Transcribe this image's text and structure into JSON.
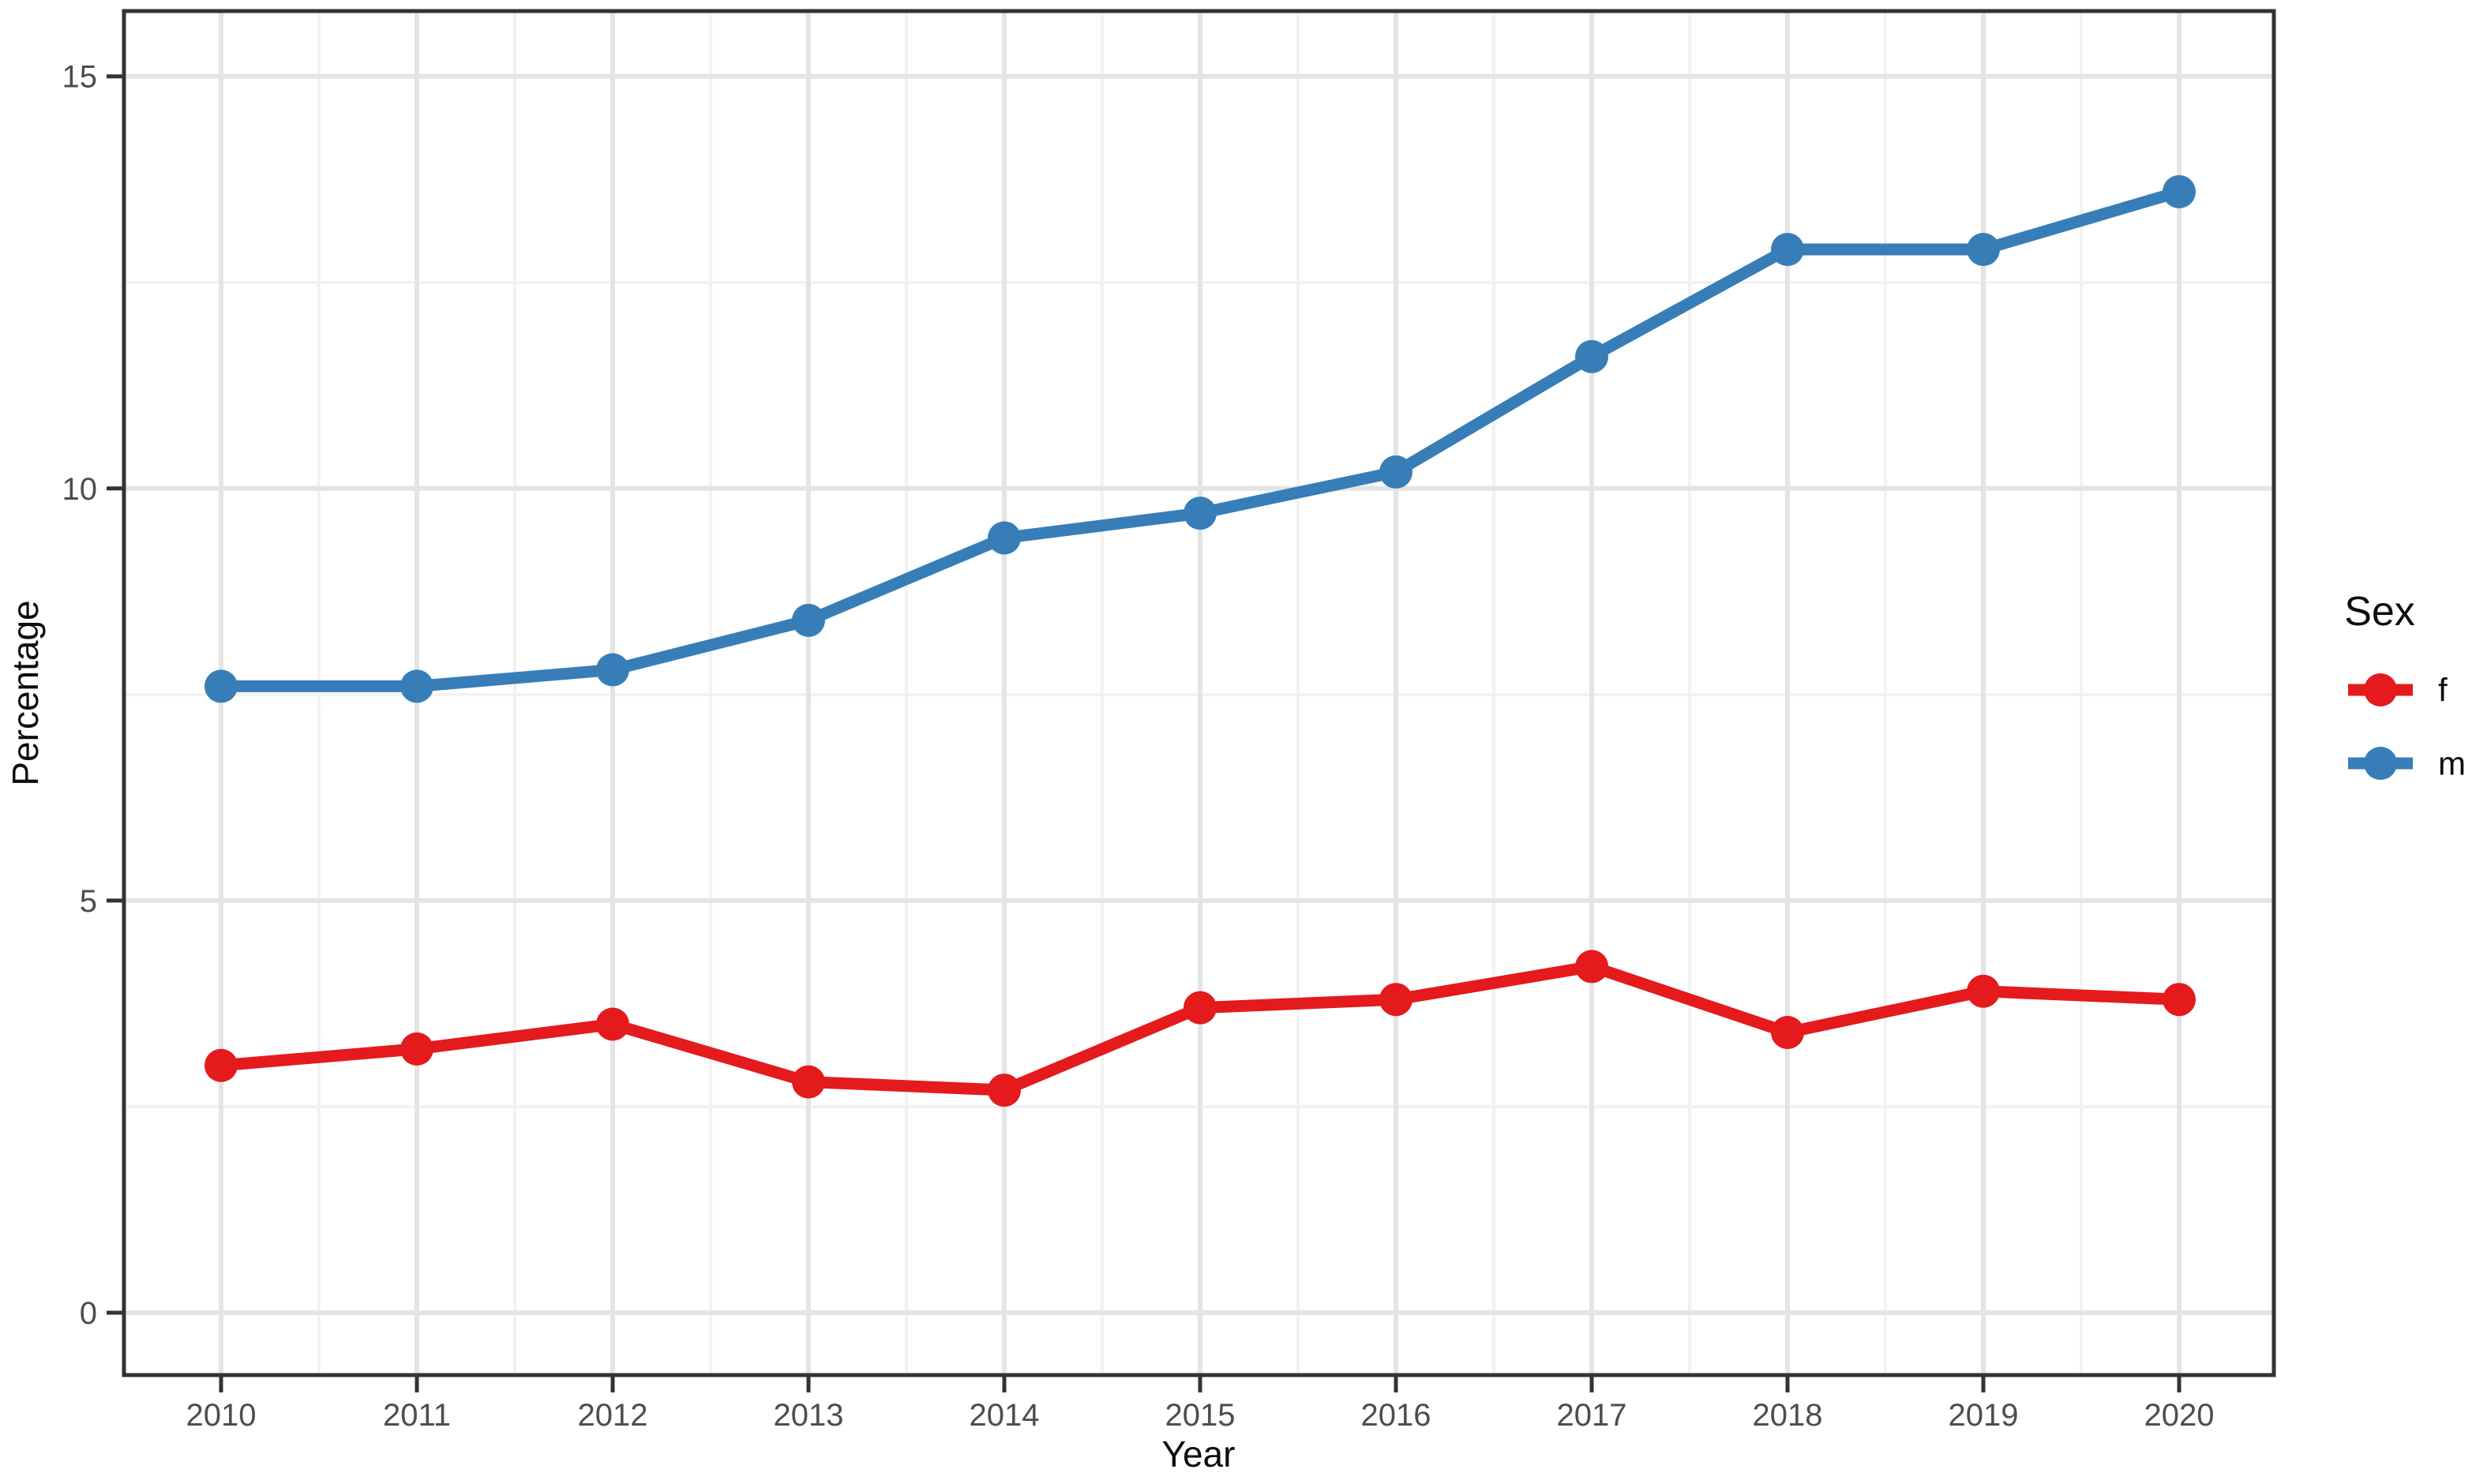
{
  "chart_data": {
    "type": "line",
    "title": "",
    "xlabel": "Year",
    "ylabel": "Percentage",
    "legend_title": "Sex",
    "legend_position": "right",
    "x": [
      2010,
      2011,
      2012,
      2013,
      2014,
      2015,
      2016,
      2017,
      2018,
      2019,
      2020
    ],
    "x_tick_labels": [
      "2010",
      "2011",
      "2012",
      "2013",
      "2014",
      "2015",
      "2016",
      "2017",
      "2018",
      "2019",
      "2020"
    ],
    "y_ticks": [
      0,
      5,
      10,
      15
    ],
    "y_tick_labels": [
      "0",
      "5",
      "10",
      "15"
    ],
    "y_minor_ticks": [
      2.5,
      7.5,
      12.5
    ],
    "ylim": [
      -0.8,
      15.8
    ],
    "xlim": [
      2009.5,
      2020.5
    ],
    "grid": {
      "major": true,
      "minor": true
    },
    "series": [
      {
        "name": "f",
        "color": "#E41A1C",
        "values": [
          3.0,
          3.2,
          3.5,
          2.8,
          2.7,
          3.7,
          3.8,
          4.2,
          3.4,
          3.9,
          3.8
        ]
      },
      {
        "name": "m",
        "color": "#377EB8",
        "values": [
          7.6,
          7.6,
          7.8,
          8.4,
          9.4,
          9.7,
          10.2,
          11.6,
          12.9,
          12.9,
          13.6
        ]
      }
    ]
  },
  "colors": {
    "background": "#ffffff",
    "panel_background": "#ffffff",
    "panel_border": "#333333",
    "grid_major": "#e4e4e4",
    "grid_minor": "#f1f1f1",
    "tick_mark": "#333333",
    "tick_label": "#4d4d4d",
    "axis_title": "#0d0d0d",
    "series_f": "#E41A1C",
    "series_m": "#377EB8"
  }
}
